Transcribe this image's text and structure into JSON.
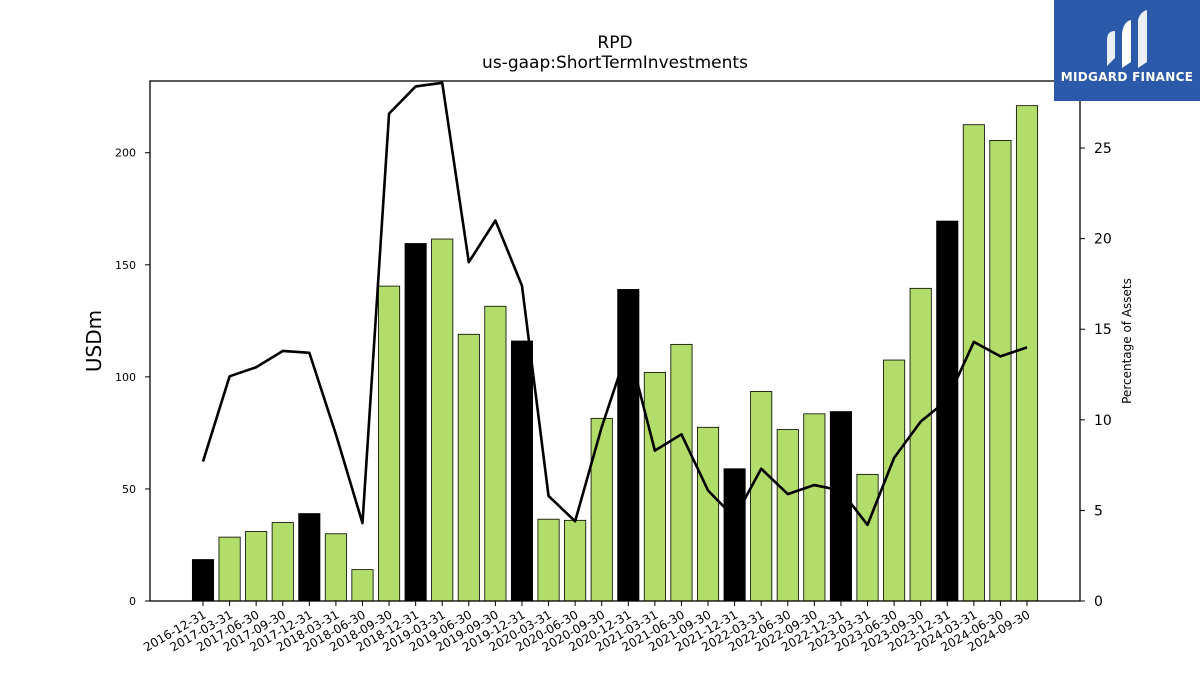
{
  "chart_data": {
    "type": "bar",
    "title": "RPD",
    "subtitle": "us-gaap:ShortTermInvestments",
    "ylabel": "USDm",
    "ylabel_right": "Percentage of Assets",
    "ylim": [
      0,
      232
    ],
    "ylim_right": [
      0,
      28.7
    ],
    "yticks": [
      0,
      50,
      100,
      150,
      200
    ],
    "yticks_right": [
      0,
      5,
      10,
      15,
      20,
      25
    ],
    "grid": false,
    "categories": [
      "2016-12-31",
      "2017-03-31",
      "2017-06-30",
      "2017-09-30",
      "2017-12-31",
      "2018-03-31",
      "2018-06-30",
      "2018-09-30",
      "2018-12-31",
      "2019-03-31",
      "2019-06-30",
      "2019-09-30",
      "2019-12-31",
      "2020-03-31",
      "2020-06-30",
      "2020-09-30",
      "2020-12-31",
      "2021-03-31",
      "2021-06-30",
      "2021-09-30",
      "2021-12-31",
      "2022-03-31",
      "2022-06-30",
      "2022-09-30",
      "2022-12-31",
      "2023-03-31",
      "2023-06-30",
      "2023-09-30",
      "2023-12-31",
      "2024-03-31",
      "2024-06-30",
      "2024-09-30"
    ],
    "series": [
      {
        "kind": "bar",
        "values": [
          18.5,
          28.5,
          31,
          35,
          39,
          30,
          14,
          140.5,
          159.5,
          161.5,
          119,
          131.5,
          116,
          36.5,
          36,
          81.5,
          139,
          102,
          114.5,
          77.5,
          59,
          93.5,
          76.5,
          83.5,
          84.5,
          56.5,
          107.5,
          139.5,
          169.5,
          212.5,
          205.5,
          221
        ],
        "colors": [
          "#000000",
          "#b3dd6a",
          "#b3dd6a",
          "#b3dd6a",
          "#000000",
          "#b3dd6a",
          "#b3dd6a",
          "#b3dd6a",
          "#000000",
          "#b3dd6a",
          "#b3dd6a",
          "#b3dd6a",
          "#000000",
          "#b3dd6a",
          "#b3dd6a",
          "#b3dd6a",
          "#000000",
          "#b3dd6a",
          "#b3dd6a",
          "#b3dd6a",
          "#000000",
          "#b3dd6a",
          "#b3dd6a",
          "#b3dd6a",
          "#000000",
          "#b3dd6a",
          "#b3dd6a",
          "#b3dd6a",
          "#000000",
          "#b3dd6a",
          "#b3dd6a",
          "#b3dd6a"
        ]
      },
      {
        "kind": "line",
        "axis": "right",
        "color": "#000000",
        "values": [
          7.7,
          12.4,
          12.9,
          13.8,
          13.7,
          9.2,
          4.3,
          26.9,
          28.4,
          28.6,
          18.7,
          21.0,
          17.4,
          5.8,
          4.4,
          9.6,
          14.0,
          8.3,
          9.2,
          6.1,
          4.6,
          7.3,
          5.9,
          6.4,
          6.1,
          4.2,
          7.9,
          9.9,
          11.1,
          14.3,
          13.5,
          14.0
        ]
      }
    ]
  },
  "logo": {
    "text": "MIDGARD FINANCE",
    "bg_color": "#2b5aab"
  }
}
